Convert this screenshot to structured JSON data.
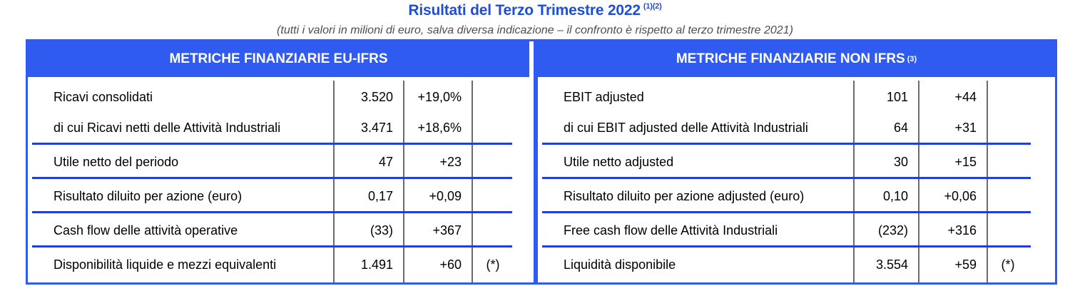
{
  "header": {
    "title": "Risultati del Terzo Trimestre 2022",
    "title_notes": "(1)(2)",
    "subtitle": "(tutti i valori in milioni di euro, salva diversa indicazione – il confronto è rispetto al terzo trimestre 2021)"
  },
  "left_panel": {
    "heading": "METRICHE FINANZIARIE EU-IFRS",
    "rows": [
      {
        "label": "Ricavi consolidati",
        "value": "3.520",
        "change": "+19,0%",
        "note": ""
      },
      {
        "label": "di cui Ricavi netti delle Attività Industriali",
        "value": "3.471",
        "change": "+18,6%",
        "note": ""
      },
      {
        "label": "Utile netto del periodo",
        "value": "47",
        "change": "+23",
        "note": ""
      },
      {
        "label": "Risultato diluito per azione (euro)",
        "value": "0,17",
        "change": "+0,09",
        "note": ""
      },
      {
        "label": "Cash flow delle attività operative",
        "value": "(33)",
        "change": "+367",
        "note": ""
      },
      {
        "label": "Disponibilità liquide e mezzi equivalenti",
        "value": "1.491",
        "change": "+60",
        "note": "(*)"
      }
    ]
  },
  "right_panel": {
    "heading": "METRICHE FINANZIARIE NON IFRS",
    "heading_note": "(3)",
    "rows": [
      {
        "label": "EBIT adjusted",
        "value": "101",
        "change": "+44",
        "note": ""
      },
      {
        "label": "di cui EBIT adjusted delle Attività Industriali",
        "value": "64",
        "change": "+31",
        "note": ""
      },
      {
        "label": "Utile netto adjusted",
        "value": "30",
        "change": "+15",
        "note": ""
      },
      {
        "label": "Risultato diluito per azione adjusted (euro)",
        "value": "0,10",
        "change": "+0,06",
        "note": ""
      },
      {
        "label": "Free cash flow delle Attività Industriali",
        "value": "(232)",
        "change": "+316",
        "note": ""
      },
      {
        "label": "Liquidità disponibile",
        "value": "3.554",
        "change": "+59",
        "note": "(*)"
      }
    ]
  },
  "colors": {
    "accent": "#2f5bf0",
    "title": "#1f4fd1",
    "rule": "#1f3fd8"
  }
}
